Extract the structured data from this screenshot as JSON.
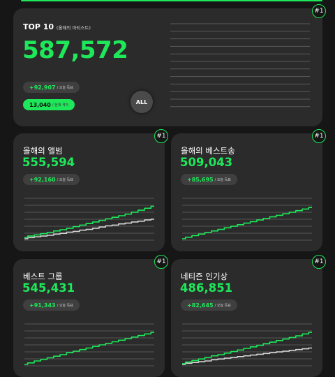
{
  "colors": {
    "accent": "#1ee85a",
    "card": "#2b2b2b",
    "background": "#161616",
    "secondary_line": "#d6d6d6"
  },
  "top_card": {
    "title": "TOP 10",
    "subtitle": "(올해의 아티스트)",
    "value": "587,572",
    "rank": "#1",
    "today_pill": {
      "value": "+92,907",
      "label": "/ 오늘 득표"
    },
    "rank_pill": {
      "value": "13,040",
      "label": "/ 현재 격차"
    },
    "all_button": "ALL"
  },
  "cards": [
    {
      "title": "올해의 앨범",
      "value": "555,594",
      "rank": "#1",
      "pill": {
        "value": "+92,160",
        "label": "/ 오늘 득표"
      }
    },
    {
      "title": "올해의 베스트송",
      "value": "509,043",
      "rank": "#1",
      "pill": {
        "value": "+85,695",
        "label": "/ 오늘 득표"
      }
    },
    {
      "title": "베스트 그룹",
      "value": "545,431",
      "rank": "#1",
      "pill": {
        "value": "+91,343",
        "label": "/ 오늘 득표"
      }
    },
    {
      "title": "네티즌 인기상",
      "value": "486,851",
      "rank": "#1",
      "pill": {
        "value": "+82,645",
        "label": "/ 오늘 득표"
      }
    }
  ],
  "chart_data": [
    {
      "type": "line",
      "grid": true,
      "ylim": [
        0,
        100
      ],
      "x": [
        0,
        1,
        2,
        3,
        4,
        5,
        6,
        7,
        8,
        9,
        10,
        11,
        12,
        13,
        14,
        15,
        16,
        17,
        18,
        19,
        20
      ],
      "series": [
        {
          "values": [
            3,
            7,
            10,
            13,
            16,
            20,
            23,
            27,
            31,
            35,
            39,
            43,
            47,
            51,
            55,
            59,
            63,
            68,
            73,
            78,
            83
          ],
          "color": "#1ee85a"
        },
        {
          "values": [
            0,
            3,
            5,
            7,
            9,
            12,
            14,
            17,
            19,
            22,
            24,
            27,
            30,
            33,
            35,
            38,
            40,
            43,
            45,
            48,
            50
          ],
          "color": "#d6d6d6"
        }
      ]
    },
    {
      "type": "line",
      "grid": true,
      "ylim": [
        0,
        100
      ],
      "x": [
        0,
        1,
        2,
        3,
        4,
        5,
        6,
        7,
        8,
        9,
        10,
        11,
        12,
        13,
        14,
        15,
        16,
        17,
        18,
        19,
        20
      ],
      "series": [
        {
          "values": [
            0,
            4,
            8,
            12,
            16,
            20,
            24,
            28,
            32,
            36,
            40,
            44,
            48,
            52,
            56,
            60,
            64,
            68,
            72,
            76,
            80
          ],
          "color": "#1ee85a"
        }
      ]
    },
    {
      "type": "line",
      "grid": true,
      "ylim": [
        0,
        100
      ],
      "x": [
        0,
        1,
        2,
        3,
        4,
        5,
        6,
        7,
        8,
        9,
        10,
        11,
        12,
        13,
        14,
        15,
        16,
        17,
        18,
        19,
        20
      ],
      "series": [
        {
          "values": [
            0,
            4,
            9,
            13,
            17,
            21,
            25,
            30,
            34,
            38,
            42,
            46,
            50,
            54,
            58,
            62,
            66,
            70,
            74,
            78,
            82
          ],
          "color": "#1ee85a"
        }
      ]
    },
    {
      "type": "line",
      "grid": true,
      "ylim": [
        0,
        100
      ],
      "x": [
        0,
        1,
        2,
        3,
        4,
        5,
        6,
        7,
        8,
        9,
        10,
        11,
        12,
        13,
        14,
        15,
        16,
        17,
        18,
        19,
        20
      ],
      "series": [
        {
          "values": [
            2,
            6,
            10,
            14,
            18,
            22,
            25,
            29,
            33,
            37,
            41,
            45,
            49,
            53,
            57,
            61,
            65,
            69,
            73,
            78,
            82
          ],
          "color": "#1ee85a"
        },
        {
          "values": [
            0,
            3,
            5,
            7,
            9,
            12,
            14,
            16,
            18,
            20,
            22,
            24,
            26,
            28,
            30,
            32,
            34,
            36,
            38,
            40,
            42
          ],
          "color": "#d6d6d6"
        }
      ]
    }
  ]
}
